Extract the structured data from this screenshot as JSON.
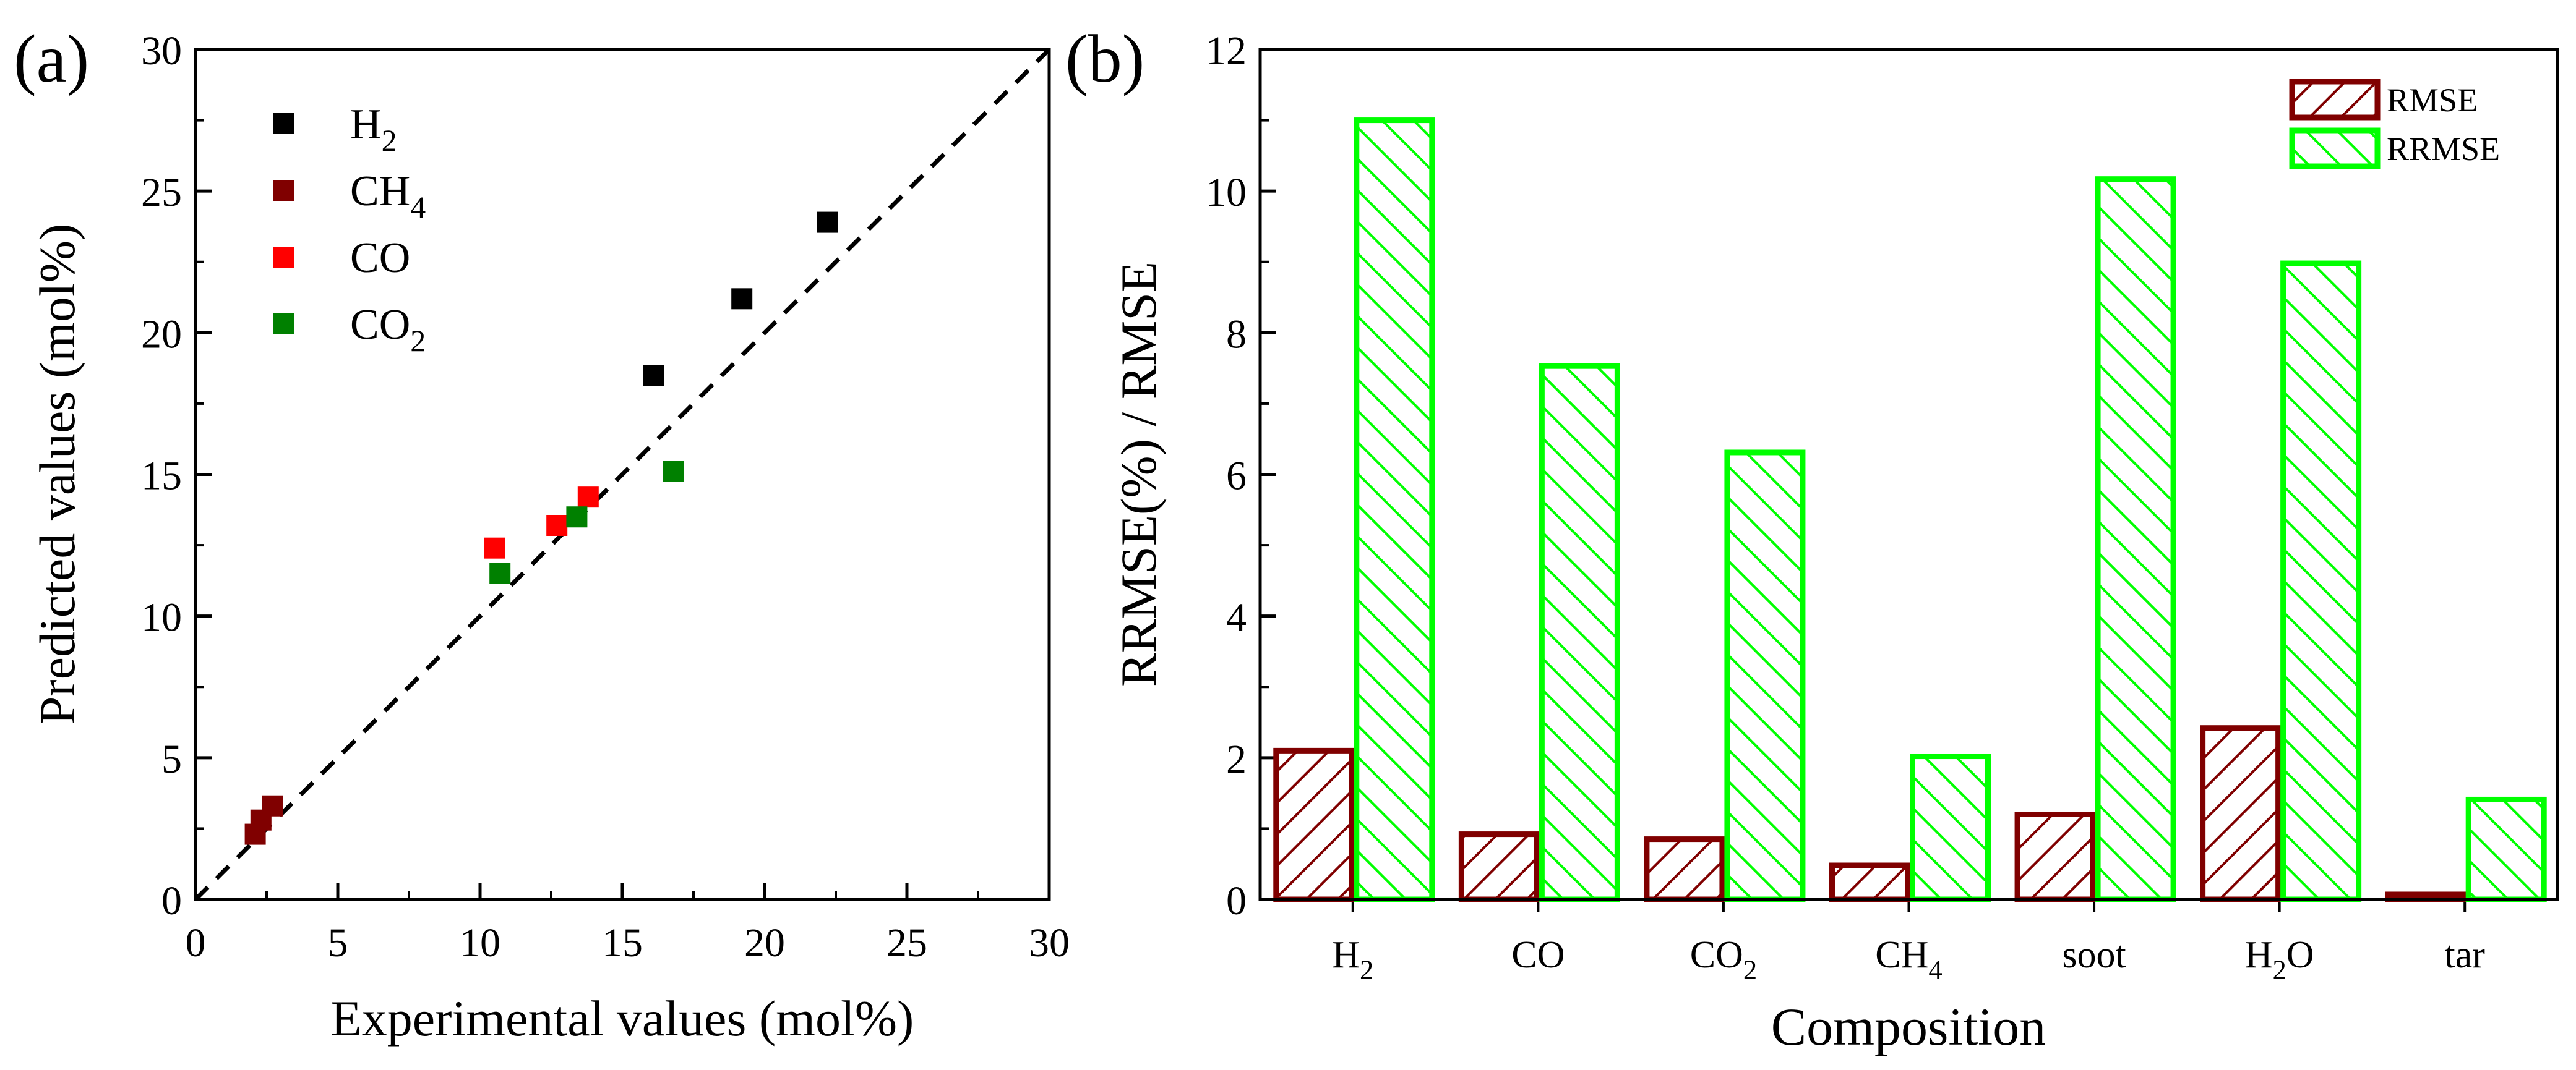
{
  "panels": {
    "a": {
      "label": "(a)"
    },
    "b": {
      "label": "(b)"
    }
  },
  "colors": {
    "h2": "#000000",
    "ch4": "#800000",
    "co": "#ff0000",
    "co2": "#008000",
    "rmse": "#800000",
    "rrmse": "#00ff00"
  },
  "chart_data": [
    {
      "type": "scatter",
      "panel": "(a)",
      "xlabel": "Experimental values (mol%)",
      "ylabel": "Predicted values (mol%)",
      "xlim": [
        0,
        30
      ],
      "ylim": [
        0,
        30
      ],
      "xticks": [
        "0",
        "5",
        "10",
        "15",
        "20",
        "25",
        "30"
      ],
      "yticks": [
        "0",
        "5",
        "10",
        "15",
        "20",
        "25",
        "30"
      ],
      "reference_line": "y = x (dashed)",
      "legend_position": "top-left",
      "series": [
        {
          "name": "H2",
          "legend_main": "H",
          "legend_sub": "2",
          "color": "#000000",
          "points": [
            [
              16.1,
              18.5
            ],
            [
              19.2,
              21.2
            ],
            [
              22.2,
              23.9
            ]
          ]
        },
        {
          "name": "CH4",
          "legend_main": "CH",
          "legend_sub": "4",
          "color": "#800000",
          "points": [
            [
              2.1,
              2.3
            ],
            [
              2.3,
              2.8
            ],
            [
              2.7,
              3.3
            ]
          ]
        },
        {
          "name": "CO",
          "legend_main": "CO",
          "legend_sub": "",
          "color": "#ff0000",
          "points": [
            [
              10.5,
              12.4
            ],
            [
              12.7,
              13.2
            ],
            [
              13.8,
              14.2
            ]
          ]
        },
        {
          "name": "CO2",
          "legend_main": "CO",
          "legend_sub": "2",
          "color": "#008000",
          "points": [
            [
              10.7,
              11.5
            ],
            [
              13.4,
              13.5
            ],
            [
              16.8,
              15.1
            ]
          ]
        }
      ]
    },
    {
      "type": "bar",
      "panel": "(b)",
      "xlabel": "Composition",
      "ylabel": "RRMSE(%) / RMSE",
      "ylim": [
        0,
        12
      ],
      "yticks": [
        "0",
        "2",
        "4",
        "6",
        "8",
        "10",
        "12"
      ],
      "legend_position": "top-right",
      "categories": [
        {
          "main": "H",
          "sub": "2",
          "tail": ""
        },
        {
          "main": "CO",
          "sub": "",
          "tail": ""
        },
        {
          "main": "CO",
          "sub": "2",
          "tail": ""
        },
        {
          "main": "CH",
          "sub": "4",
          "tail": ""
        },
        {
          "main": "soot",
          "sub": "",
          "tail": ""
        },
        {
          "main": "H",
          "sub": "2",
          "tail": "O"
        },
        {
          "main": "tar",
          "sub": "",
          "tail": ""
        }
      ],
      "series": [
        {
          "name": "RMSE",
          "color": "#800000",
          "hatch": "diagonal /",
          "values": [
            2.1,
            0.92,
            0.85,
            0.48,
            1.2,
            2.42,
            0.07
          ]
        },
        {
          "name": "RRMSE",
          "color": "#00ff00",
          "hatch": "diagonal \\",
          "values": [
            11.0,
            7.53,
            6.31,
            2.02,
            10.17,
            8.98,
            1.41
          ]
        }
      ]
    }
  ]
}
